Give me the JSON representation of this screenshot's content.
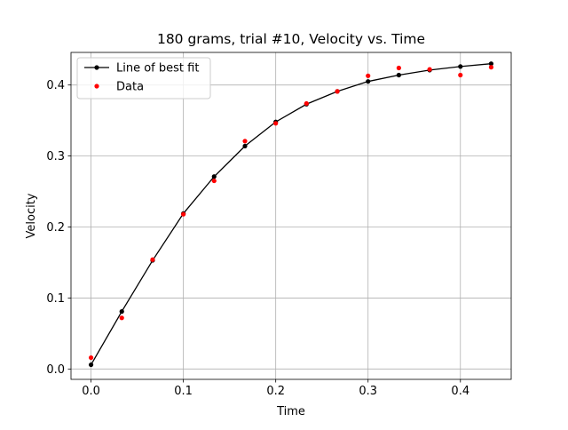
{
  "chart_data": {
    "type": "line",
    "title": "180 grams, trial #10, Velocity vs. Time",
    "xlabel": "Time",
    "ylabel": "Velocity",
    "xlim": [
      -0.0217,
      0.455
    ],
    "ylim": [
      -0.0146,
      0.4459
    ],
    "xticks": [
      0.0,
      0.1,
      0.2,
      0.3,
      0.4
    ],
    "xtick_labels": [
      "0.0",
      "0.1",
      "0.2",
      "0.3",
      "0.4"
    ],
    "yticks": [
      0.0,
      0.1,
      0.2,
      0.3,
      0.4
    ],
    "ytick_labels": [
      "0.0",
      "0.1",
      "0.2",
      "0.3",
      "0.4"
    ],
    "grid": true,
    "legend_position": "top-left",
    "series": [
      {
        "name": "Line of best fit",
        "style": "line-with-markers",
        "color": "#000000",
        "x": [
          0.0,
          0.0333,
          0.0667,
          0.1,
          0.1333,
          0.1667,
          0.2,
          0.2333,
          0.2667,
          0.3,
          0.3333,
          0.3667,
          0.4,
          0.4333
        ],
        "y": [
          0.006,
          0.081,
          0.153,
          0.219,
          0.271,
          0.314,
          0.348,
          0.373,
          0.391,
          0.405,
          0.414,
          0.421,
          0.426,
          0.43
        ]
      },
      {
        "name": "Data",
        "style": "markers",
        "color": "#ff0000",
        "x": [
          0.0,
          0.0333,
          0.0667,
          0.1,
          0.1333,
          0.1667,
          0.2,
          0.2333,
          0.2667,
          0.3,
          0.3333,
          0.3667,
          0.4,
          0.4333
        ],
        "y": [
          0.016,
          0.072,
          0.154,
          0.218,
          0.265,
          0.321,
          0.346,
          0.374,
          0.391,
          0.413,
          0.424,
          0.422,
          0.414,
          0.425
        ]
      }
    ]
  }
}
